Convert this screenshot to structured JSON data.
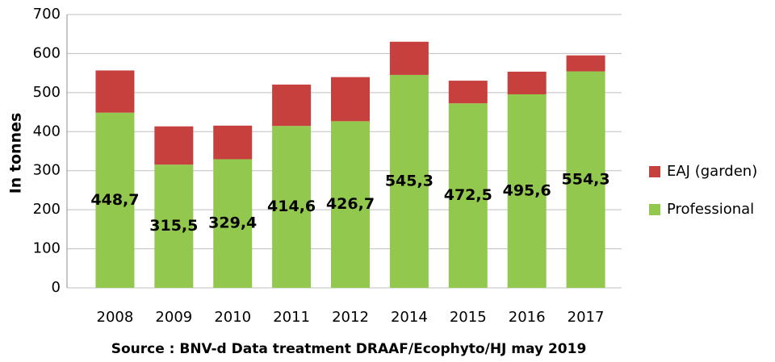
{
  "chart_data": {
    "type": "stacked_bar",
    "x_label": "Source : BNV-d Data treatment DRAAF/Ecophyto/HJ may 2019",
    "y_label": "In tonnes",
    "categories": [
      "2008",
      "2009",
      "2010",
      "2011",
      "2012",
      "2014",
      "2015",
      "2016",
      "2017"
    ],
    "series": [
      {
        "name": "Professional",
        "color": "#92c84e",
        "values": [
          448.7,
          315.5,
          329.4,
          414.6,
          426.7,
          545.3,
          472.5,
          495.6,
          554.3
        ],
        "value_labels": [
          "448,7",
          "315,5",
          "329,4",
          "414,6",
          "426,7",
          "545,3",
          "472,5",
          "495,6",
          "554,3"
        ]
      },
      {
        "name": "EAJ (garden)",
        "color": "#c6403e",
        "values": [
          108,
          98,
          86,
          106,
          113,
          85,
          58,
          58,
          41
        ]
      }
    ],
    "ylim": [
      0,
      700
    ],
    "yticks": [
      0,
      100,
      200,
      300,
      400,
      500,
      600,
      700
    ],
    "grid": true
  }
}
